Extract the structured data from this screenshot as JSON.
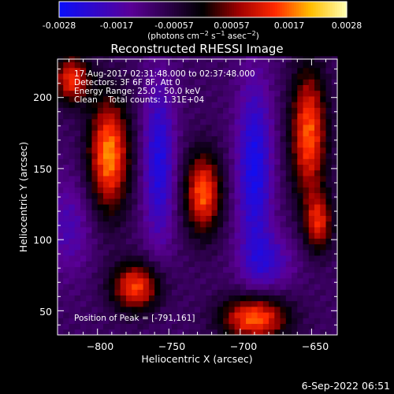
{
  "colorbar": {
    "ticks": [
      "-0.0028",
      "-0.0017",
      "-0.00057",
      "0.00057",
      "0.0017",
      "0.0028"
    ],
    "range": [
      -0.0028,
      0.0028
    ]
  },
  "chart_data": {
    "type": "heatmap",
    "title": "Reconstructed RHESSI Image",
    "xlabel": "Heliocentric X (arcsec)",
    "ylabel": "Heliocentric Y (arcsec)",
    "xlim": [
      -828,
      -632
    ],
    "ylim": [
      33,
      227
    ],
    "xticks": [
      -800,
      -750,
      -700,
      -650
    ],
    "xtick_labels": [
      "−800",
      "−750",
      "−700",
      "−650"
    ],
    "yticks": [
      50,
      100,
      150,
      200
    ],
    "ytick_labels": [
      "50",
      "100",
      "150",
      "200"
    ],
    "colormap": "red-temperature (blue-purple negative, black zero, red-orange-yellow-white positive)",
    "info_lines": [
      "17-Aug-2017 02:31:48.000 to 02:37:48.000",
      "Detectors: 3F 6F 8F, Att 0",
      "Energy Range: 25.0 - 50.0 keV",
      "Clean    Total counts: 1.31E+04"
    ],
    "peak_label": "Position of Peak = [-791,161]",
    "peak": [
      -791,
      161
    ],
    "blobs": [
      {
        "x": -792,
        "y": 160,
        "sx": 10,
        "sy": 28,
        "amp": 1.0
      },
      {
        "x": -818,
        "y": 213,
        "sx": 9,
        "sy": 12,
        "amp": 0.8
      },
      {
        "x": -726,
        "y": 133,
        "sx": 9,
        "sy": 20,
        "amp": 0.9
      },
      {
        "x": -773,
        "y": 67,
        "sx": 12,
        "sy": 12,
        "amp": 0.85
      },
      {
        "x": -690,
        "y": 45,
        "sx": 16,
        "sy": 11,
        "amp": 0.95
      },
      {
        "x": -652,
        "y": 175,
        "sx": 9,
        "sy": 32,
        "amp": 0.9
      },
      {
        "x": -645,
        "y": 112,
        "sx": 7,
        "sy": 14,
        "amp": 0.7
      },
      {
        "x": -757,
        "y": 155,
        "sx": 8,
        "sy": 42,
        "amp": -0.55
      },
      {
        "x": -690,
        "y": 150,
        "sx": 9,
        "sy": 45,
        "amp": -0.6
      },
      {
        "x": -680,
        "y": 85,
        "sx": 13,
        "sy": 14,
        "amp": -0.35
      },
      {
        "x": -820,
        "y": 110,
        "sx": 12,
        "sy": 24,
        "amp": -0.3
      }
    ],
    "background_level": -0.32
  },
  "footer": {
    "timestamp": "6-Sep-2022 06:51"
  },
  "colors": {
    "background": "#000000",
    "text": "#ffffff"
  }
}
